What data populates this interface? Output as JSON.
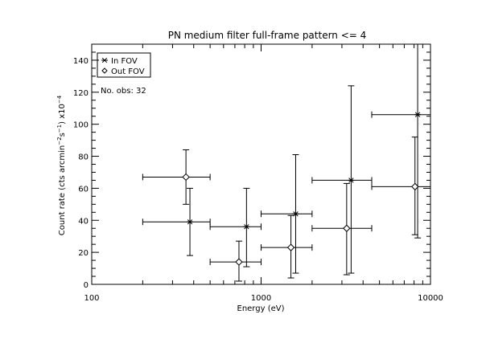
{
  "chart_data": {
    "type": "scatter",
    "title": "PN medium filter full-frame pattern <= 4",
    "xlabel": "Energy (eV)",
    "ylabel": "Count rate (cts arcmin^-2 s^-1) x10^-4",
    "x_scale": "log",
    "xlim": [
      100,
      10000
    ],
    "ylim": [
      0,
      150
    ],
    "x_ticks": [
      100,
      1000,
      10000
    ],
    "x_tick_labels": [
      "100",
      "1000",
      "10000"
    ],
    "y_ticks": [
      0,
      20,
      40,
      60,
      80,
      100,
      120,
      140
    ],
    "y_tick_labels": [
      "0",
      "20",
      "40",
      "60",
      "80",
      "100",
      "120",
      "140"
    ],
    "legend": {
      "placement": "top-left",
      "entries": [
        {
          "name": "In FOV",
          "marker": "asterisk"
        },
        {
          "name": "Out FOV",
          "marker": "diamond"
        }
      ]
    },
    "annotation": "No. obs: 32",
    "series": [
      {
        "name": "In FOV",
        "marker": "asterisk",
        "points": [
          {
            "x": 380,
            "xlo": 200,
            "xhi": 500,
            "y": 39,
            "ylo": 18,
            "yhi": 60
          },
          {
            "x": 820,
            "xlo": 500,
            "xhi": 1000,
            "y": 36,
            "ylo": 11,
            "yhi": 60
          },
          {
            "x": 1600,
            "xlo": 1000,
            "xhi": 2000,
            "y": 44,
            "ylo": 7,
            "yhi": 81
          },
          {
            "x": 3400,
            "xlo": 2000,
            "xhi": 4500,
            "y": 65,
            "ylo": 7,
            "yhi": 124
          },
          {
            "x": 8400,
            "xlo": 4500,
            "xhi": 10000,
            "y": 106,
            "ylo": 29,
            "yhi": 150
          }
        ]
      },
      {
        "name": "Out FOV",
        "marker": "diamond",
        "points": [
          {
            "x": 360,
            "xlo": 200,
            "xhi": 500,
            "y": 67,
            "ylo": 50,
            "yhi": 84
          },
          {
            "x": 740,
            "xlo": 500,
            "xhi": 1000,
            "y": 14,
            "ylo": 2,
            "yhi": 27
          },
          {
            "x": 1500,
            "xlo": 1000,
            "xhi": 2000,
            "y": 23,
            "ylo": 4,
            "yhi": 43
          },
          {
            "x": 3200,
            "xlo": 2000,
            "xhi": 4500,
            "y": 35,
            "ylo": 6,
            "yhi": 63
          },
          {
            "x": 8100,
            "xlo": 4500,
            "xhi": 10000,
            "y": 61,
            "ylo": 31,
            "yhi": 92
          }
        ]
      }
    ]
  }
}
